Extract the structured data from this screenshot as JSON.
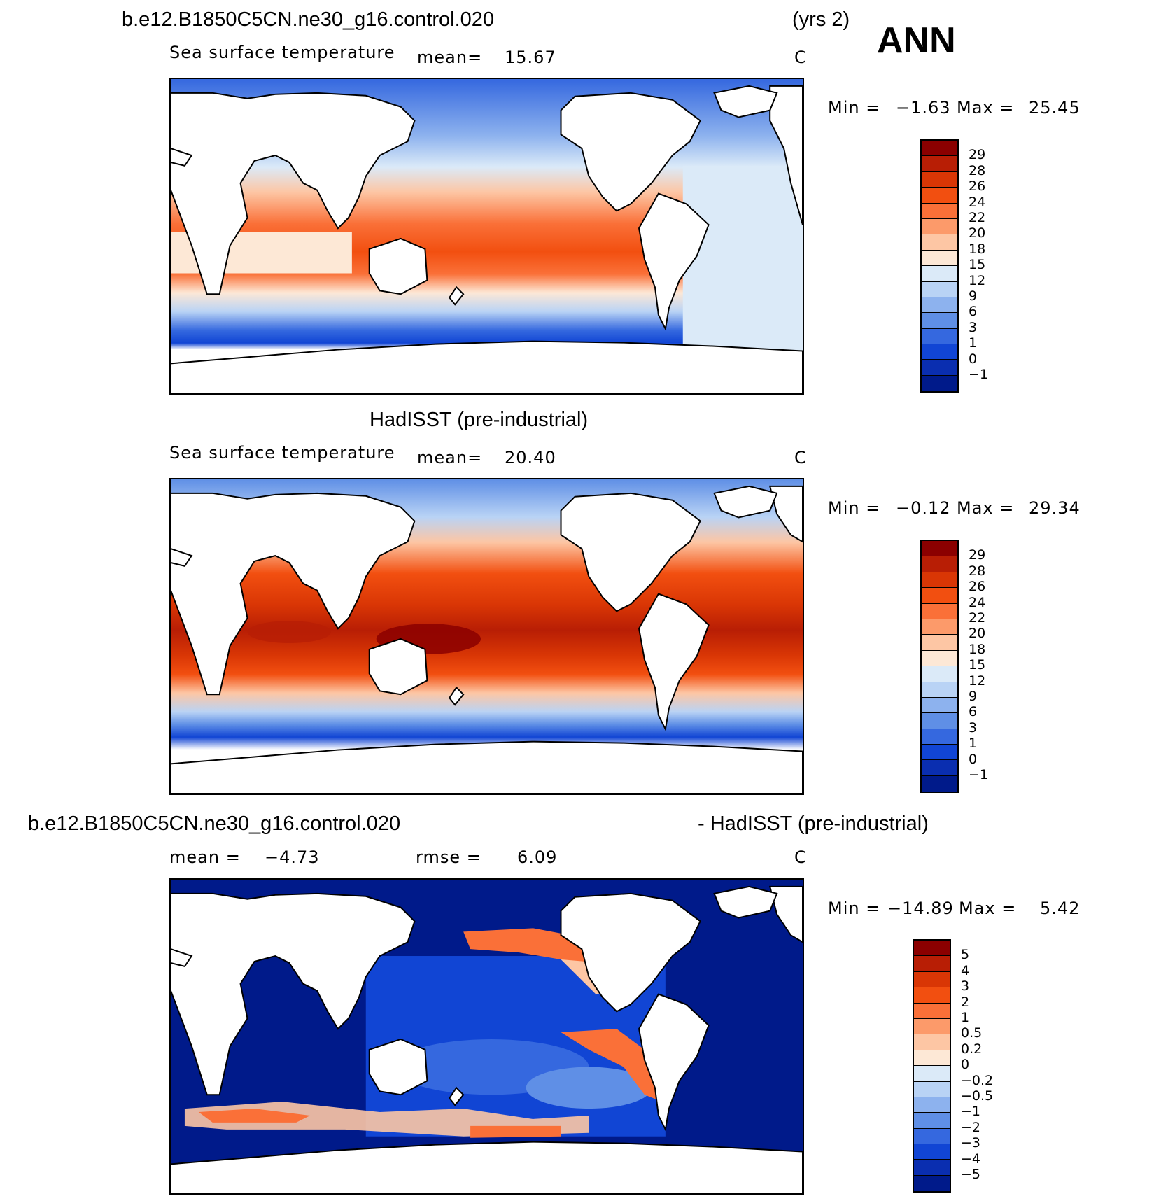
{
  "header": {
    "case_name": "b.e12.B1850C5CN.ne30_g16.control.020",
    "years": "(yrs 2)",
    "season": "ANN"
  },
  "panels": [
    {
      "variable": "Sea surface temperature",
      "mean_label": "mean=",
      "mean_value": "15.67",
      "units": "C",
      "min_label": "Min =",
      "min_value": "−1.63",
      "max_label": "Max =",
      "max_value": "25.45"
    },
    {
      "title": "HadISST (pre-industrial)",
      "variable": "Sea surface temperature",
      "mean_label": "mean=",
      "mean_value": "20.40",
      "units": "C",
      "min_label": "Min =",
      "min_value": "−0.12",
      "max_label": "Max =",
      "max_value": "29.34"
    },
    {
      "title_left": "b.e12.B1850C5CN.ne30_g16.control.020",
      "title_right": "- HadISST (pre-industrial)",
      "mean_label": "mean =",
      "mean_value": "−4.73",
      "rmse_label": "rmse =",
      "rmse_value": "6.09",
      "units": "C",
      "min_label": "Min =",
      "min_value": "−14.89",
      "max_label": "Max =",
      "max_value": "5.42"
    }
  ],
  "chart_data": [
    {
      "type": "heatmap",
      "title": "b.e12.B1850C5CN.ne30_g16.control.020 Sea surface temperature",
      "units": "C",
      "mean": 15.67,
      "min": -1.63,
      "max": 25.45,
      "colorbar_levels": [
        "29",
        "28",
        "26",
        "24",
        "22",
        "20",
        "18",
        "15",
        "12",
        "9",
        "6",
        "3",
        "1",
        "0",
        "−1"
      ],
      "colorbar_colors": [
        "#8b0000",
        "#b81e05",
        "#d93605",
        "#f24f10",
        "#fa7038",
        "#fc9a6a",
        "#fdc6a4",
        "#fde8d6",
        "#dbeaf8",
        "#b9d3f5",
        "#8db2ee",
        "#5f8fe6",
        "#3568df",
        "#1145d4",
        "#0a2eb0",
        "#001a8a"
      ]
    },
    {
      "type": "heatmap",
      "title": "HadISST (pre-industrial) Sea surface temperature",
      "units": "C",
      "mean": 20.4,
      "min": -0.12,
      "max": 29.34,
      "colorbar_levels": [
        "29",
        "28",
        "26",
        "24",
        "22",
        "20",
        "18",
        "15",
        "12",
        "9",
        "6",
        "3",
        "1",
        "0",
        "−1"
      ],
      "colorbar_colors": [
        "#8b0000",
        "#b81e05",
        "#d93605",
        "#f24f10",
        "#fa7038",
        "#fc9a6a",
        "#fdc6a4",
        "#fde8d6",
        "#dbeaf8",
        "#b9d3f5",
        "#8db2ee",
        "#5f8fe6",
        "#3568df",
        "#1145d4",
        "#0a2eb0",
        "#001a8a"
      ]
    },
    {
      "type": "heatmap",
      "title": "b.e12.B1850C5CN.ne30_g16.control.020 - HadISST (pre-industrial)",
      "units": "C",
      "mean": -4.73,
      "rmse": 6.09,
      "min": -14.89,
      "max": 5.42,
      "colorbar_levels": [
        "5",
        "4",
        "3",
        "2",
        "1",
        "0.5",
        "0.2",
        "0",
        "−0.2",
        "−0.5",
        "−1",
        "−2",
        "−3",
        "−4",
        "−5"
      ],
      "colorbar_colors": [
        "#8b0000",
        "#b81e05",
        "#d93605",
        "#f24f10",
        "#fa7038",
        "#fc9a6a",
        "#fdc6a4",
        "#fde8d6",
        "#dbeaf8",
        "#b9d3f5",
        "#8db2ee",
        "#5f8fe6",
        "#3568df",
        "#1145d4",
        "#0a2eb0",
        "#001a8a"
      ]
    }
  ]
}
